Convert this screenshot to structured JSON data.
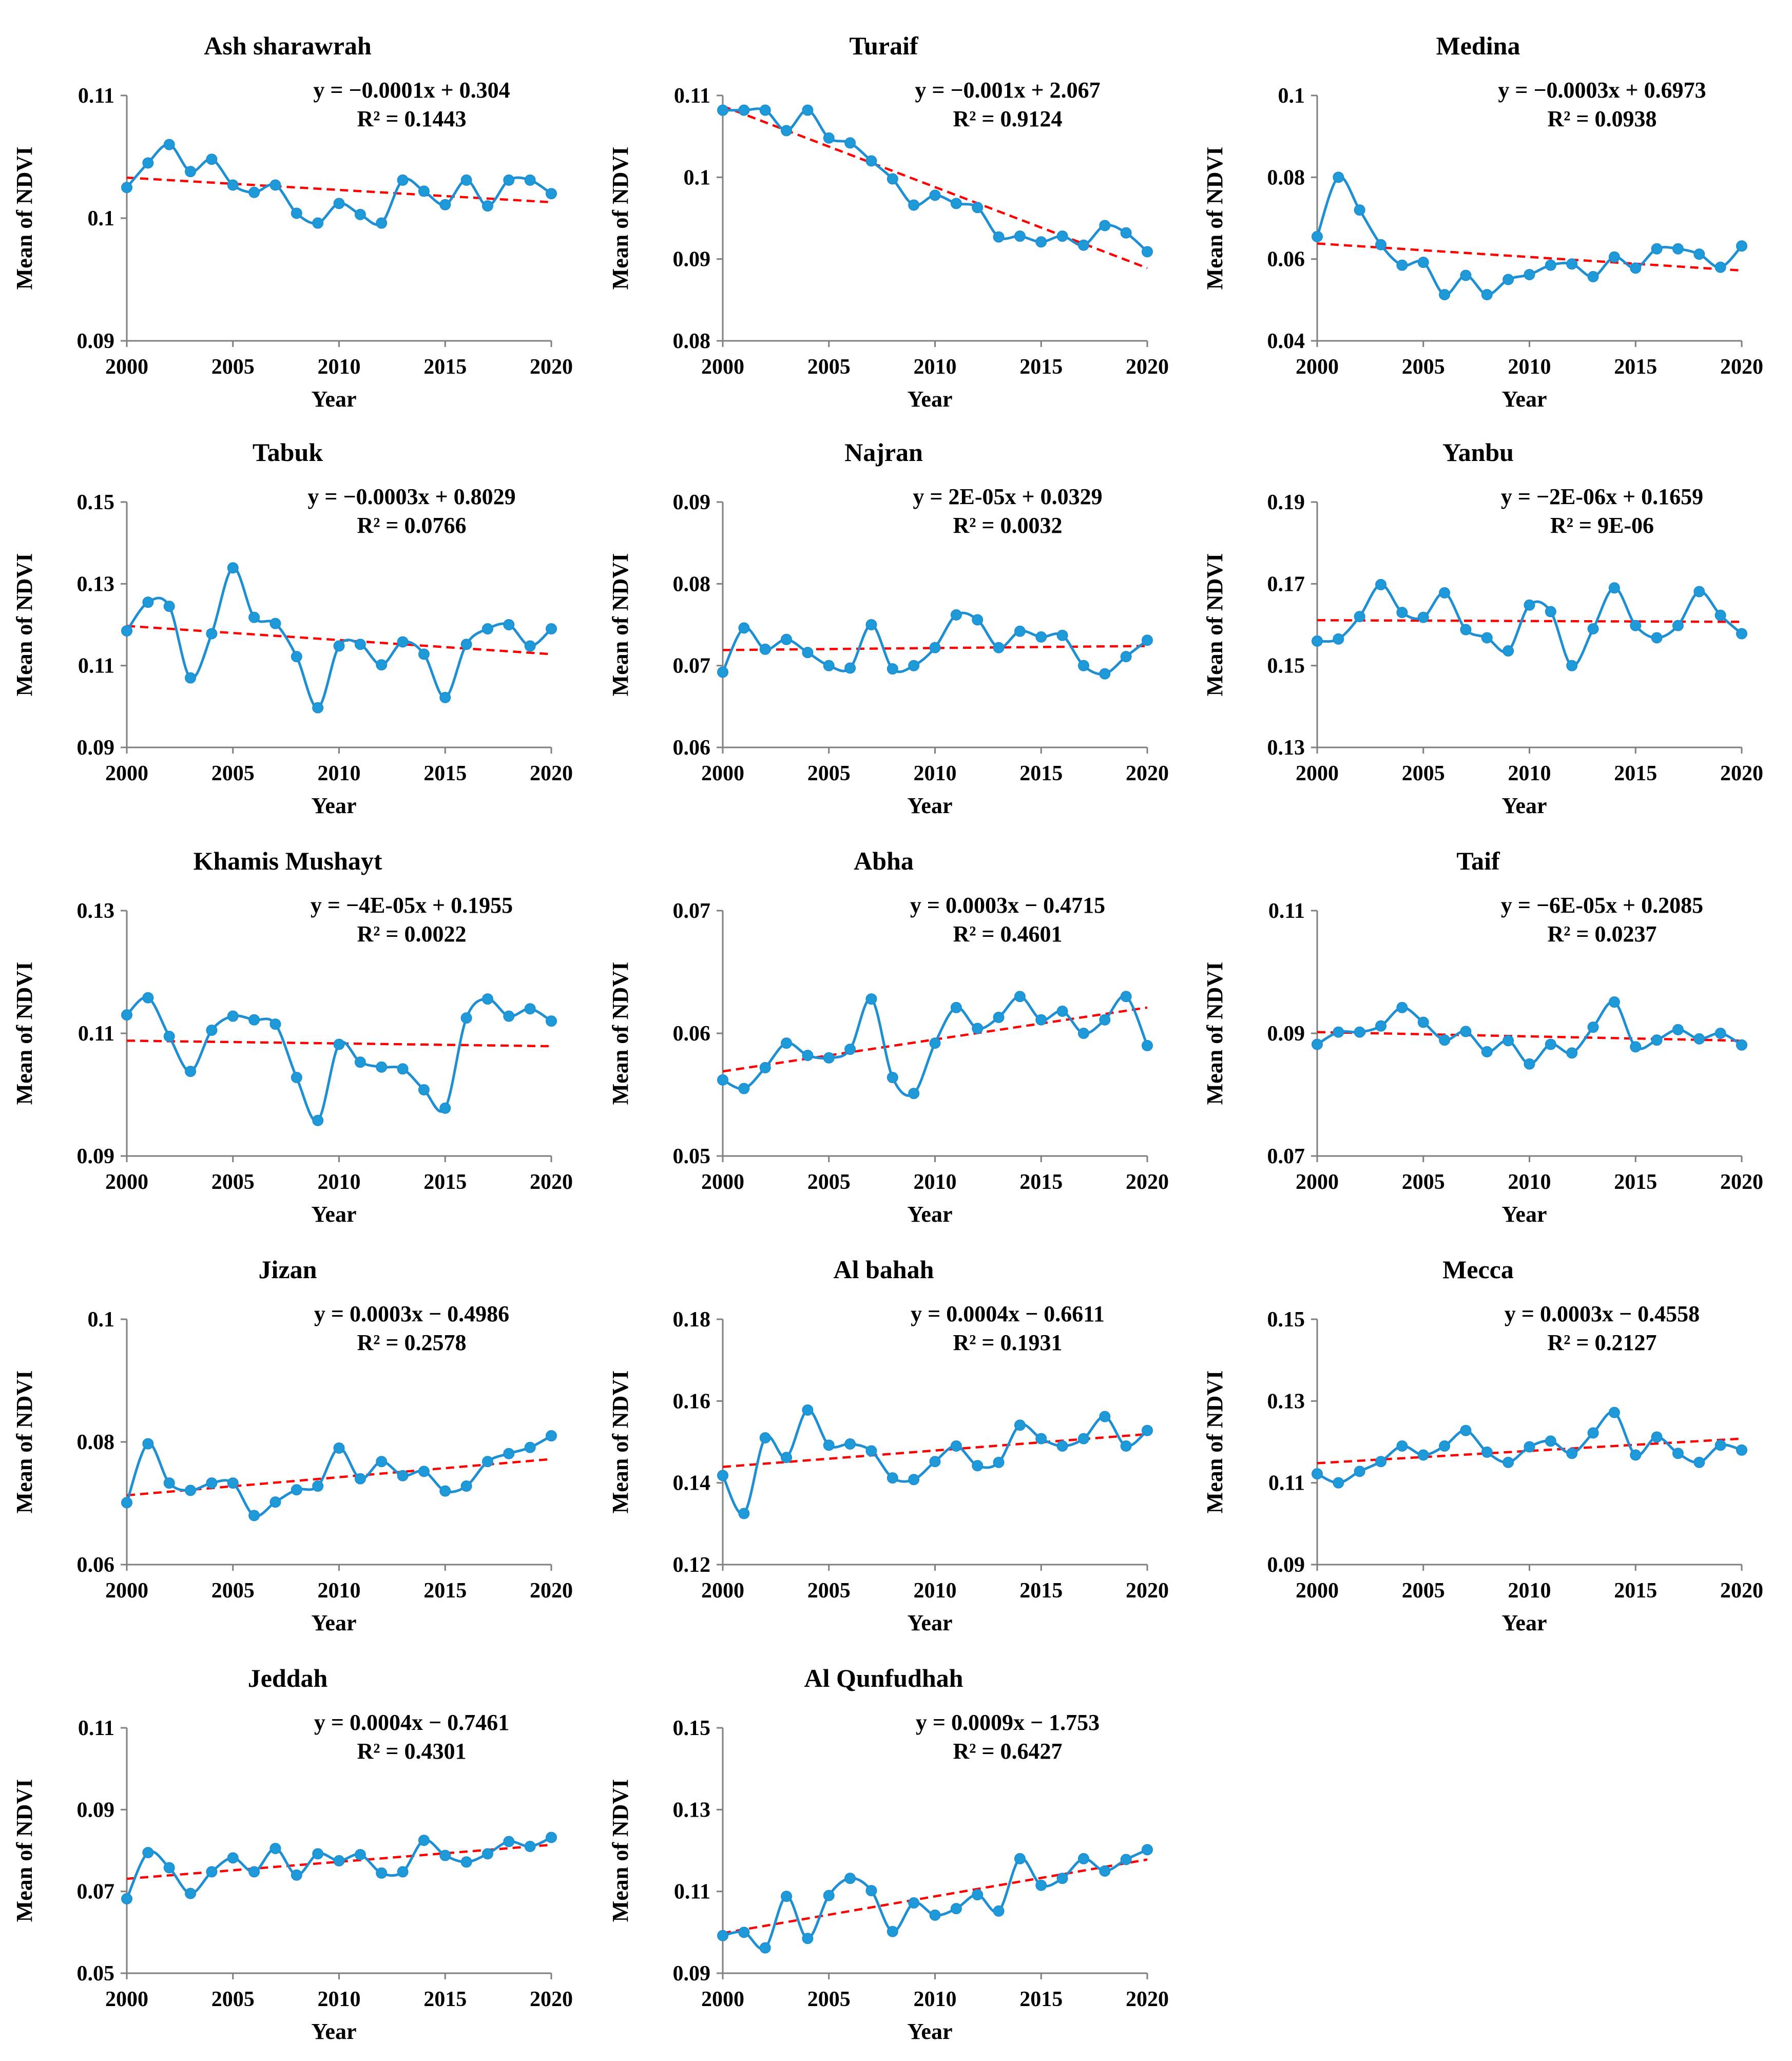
{
  "figure": {
    "series_color": "#1f8fd4",
    "marker_fill": "#1f9ad9",
    "trend_color": "#ff0000",
    "axis_color": "#7f7f7f"
  },
  "chart_data": [
    {
      "type": "line",
      "title": "Ash sharawrah",
      "xlabel": "Year",
      "ylabel": "Mean of NDVI",
      "x": [
        2000,
        2001,
        2002,
        2003,
        2004,
        2005,
        2006,
        2007,
        2008,
        2009,
        2010,
        2011,
        2012,
        2013,
        2014,
        2015,
        2016,
        2017,
        2018,
        2019,
        2020
      ],
      "values": [
        0.1025,
        0.1045,
        0.106,
        0.1038,
        0.1048,
        0.1027,
        0.1021,
        0.1027,
        0.1004,
        0.0996,
        0.1012,
        0.1003,
        0.0996,
        0.1031,
        0.1022,
        0.1011,
        0.1031,
        0.101,
        0.1031,
        0.1031,
        0.102
      ],
      "trend": {
        "slope": -0.0001,
        "intercept": 0.304,
        "r2": 0.1443,
        "start": 0.1033,
        "end": 0.1013
      },
      "equation": "y = −0.0001x + 0.304",
      "r2_label": "R² = 0.1443",
      "xlim": [
        2000,
        2020
      ],
      "ylim": [
        0.09,
        0.11
      ],
      "xticks": [
        2000,
        2005,
        2010,
        2015,
        2020
      ],
      "yticks": [
        0.09,
        0.1,
        0.11
      ],
      "ytick_labels": [
        "0.09",
        "0.1",
        "0.11"
      ]
    },
    {
      "type": "line",
      "title": "Turaif",
      "xlabel": "Year",
      "ylabel": "Mean of NDVI",
      "x": [
        2000,
        2001,
        2002,
        2003,
        2004,
        2005,
        2006,
        2007,
        2008,
        2009,
        2010,
        2011,
        2012,
        2013,
        2014,
        2015,
        2016,
        2017,
        2018,
        2019,
        2020
      ],
      "values": [
        0.1082,
        0.1082,
        0.1082,
        0.1057,
        0.1082,
        0.1048,
        0.1042,
        0.102,
        0.0998,
        0.0966,
        0.0978,
        0.0968,
        0.0963,
        0.0927,
        0.0928,
        0.0921,
        0.0928,
        0.0917,
        0.0941,
        0.0932,
        0.0909
      ],
      "trend": {
        "slope": -0.001,
        "intercept": 2.067,
        "r2": 0.9124,
        "start": 0.1087,
        "end": 0.0889
      },
      "equation": "y = −0.001x + 2.067",
      "r2_label": "R² = 0.9124",
      "xlim": [
        2000,
        2020
      ],
      "ylim": [
        0.08,
        0.11
      ],
      "xticks": [
        2000,
        2005,
        2010,
        2015,
        2020
      ],
      "yticks": [
        0.08,
        0.09,
        0.1,
        0.11
      ],
      "ytick_labels": [
        "0.08",
        "0.09",
        "0.1",
        "0.11"
      ]
    },
    {
      "type": "line",
      "title": "Medina",
      "xlabel": "Year",
      "ylabel": "Mean of NDVI",
      "x": [
        2000,
        2001,
        2002,
        2003,
        2004,
        2005,
        2006,
        2007,
        2008,
        2009,
        2010,
        2011,
        2012,
        2013,
        2014,
        2015,
        2016,
        2017,
        2018,
        2019,
        2020
      ],
      "values": [
        0.0655,
        0.08,
        0.072,
        0.0635,
        0.0585,
        0.0592,
        0.0513,
        0.056,
        0.0513,
        0.055,
        0.0562,
        0.0585,
        0.0588,
        0.0557,
        0.0605,
        0.0578,
        0.0625,
        0.0625,
        0.0612,
        0.058,
        0.0632
      ],
      "trend": {
        "slope": -0.0003,
        "intercept": 0.6973,
        "r2": 0.0938,
        "start": 0.0638,
        "end": 0.0572
      },
      "equation": "y = −0.0003x + 0.6973",
      "r2_label": "R² = 0.0938",
      "xlim": [
        2000,
        2020
      ],
      "ylim": [
        0.04,
        0.1
      ],
      "xticks": [
        2000,
        2005,
        2010,
        2015,
        2020
      ],
      "yticks": [
        0.04,
        0.06,
        0.08,
        0.1
      ],
      "ytick_labels": [
        "0.04",
        "0.06",
        "0.08",
        "0.1"
      ]
    },
    {
      "type": "line",
      "title": "Tabuk",
      "xlabel": "Year",
      "ylabel": "Mean of NDVI",
      "x": [
        2000,
        2001,
        2002,
        2003,
        2004,
        2005,
        2006,
        2007,
        2008,
        2009,
        2010,
        2011,
        2012,
        2013,
        2014,
        2015,
        2016,
        2017,
        2018,
        2019,
        2020
      ],
      "values": [
        0.1185,
        0.1255,
        0.1245,
        0.107,
        0.1178,
        0.1339,
        0.1218,
        0.1203,
        0.1122,
        0.0997,
        0.1148,
        0.1152,
        0.1102,
        0.1158,
        0.1128,
        0.1022,
        0.1152,
        0.119,
        0.12,
        0.1148,
        0.119
      ],
      "trend": {
        "slope": -0.0003,
        "intercept": 0.8029,
        "r2": 0.0766,
        "start": 0.1197,
        "end": 0.1128
      },
      "equation": "y = −0.0003x + 0.8029",
      "r2_label": "R² = 0.0766",
      "xlim": [
        2000,
        2020
      ],
      "ylim": [
        0.09,
        0.15
      ],
      "xticks": [
        2000,
        2005,
        2010,
        2015,
        2020
      ],
      "yticks": [
        0.09,
        0.11,
        0.13,
        0.15
      ],
      "ytick_labels": [
        "0.09",
        "0.11",
        "0.13",
        "0.15"
      ]
    },
    {
      "type": "line",
      "title": "Najran",
      "xlabel": "Year",
      "ylabel": "Mean of NDVI",
      "x": [
        2000,
        2001,
        2002,
        2003,
        2004,
        2005,
        2006,
        2007,
        2008,
        2009,
        2010,
        2011,
        2012,
        2013,
        2014,
        2015,
        2016,
        2017,
        2018,
        2019,
        2020
      ],
      "values": [
        0.0692,
        0.0746,
        0.072,
        0.0732,
        0.0716,
        0.07,
        0.0697,
        0.075,
        0.0696,
        0.07,
        0.0722,
        0.0762,
        0.0756,
        0.0722,
        0.0742,
        0.0735,
        0.0737,
        0.07,
        0.069,
        0.0711,
        0.0731
      ],
      "trend": {
        "slope": 2e-05,
        "intercept": 0.0329,
        "r2": 0.0032,
        "start": 0.0719,
        "end": 0.0724
      },
      "equation": "y = 2E-05x + 0.0329",
      "r2_label": "R² = 0.0032",
      "xlim": [
        2000,
        2020
      ],
      "ylim": [
        0.06,
        0.09
      ],
      "xticks": [
        2000,
        2005,
        2010,
        2015,
        2020
      ],
      "yticks": [
        0.06,
        0.07,
        0.08,
        0.09
      ],
      "ytick_labels": [
        "0.06",
        "0.07",
        "0.08",
        "0.09"
      ]
    },
    {
      "type": "line",
      "title": "Yanbu",
      "xlabel": "Year",
      "ylabel": "Mean of NDVI",
      "x": [
        2000,
        2001,
        2002,
        2003,
        2004,
        2005,
        2006,
        2007,
        2008,
        2009,
        2010,
        2011,
        2012,
        2013,
        2014,
        2015,
        2016,
        2017,
        2018,
        2019,
        2020
      ],
      "values": [
        0.156,
        0.1565,
        0.162,
        0.1698,
        0.163,
        0.1618,
        0.1678,
        0.1588,
        0.1568,
        0.1536,
        0.1648,
        0.1632,
        0.15,
        0.159,
        0.169,
        0.1598,
        0.1568,
        0.1598,
        0.1681,
        0.1623,
        0.1578
      ],
      "trend": {
        "slope": -2e-06,
        "intercept": 0.1659,
        "r2": 9e-06,
        "start": 0.1611,
        "end": 0.1607
      },
      "equation": "y = −2E-06x + 0.1659",
      "r2_label": "R² = 9E-06",
      "xlim": [
        2000,
        2020
      ],
      "ylim": [
        0.13,
        0.19
      ],
      "xticks": [
        2000,
        2005,
        2010,
        2015,
        2020
      ],
      "yticks": [
        0.13,
        0.15,
        0.17,
        0.19
      ],
      "ytick_labels": [
        "0.13",
        "0.15",
        "0.17",
        "0.19"
      ]
    },
    {
      "type": "line",
      "title": "Khamis Mushayt",
      "xlabel": "Year",
      "ylabel": "Mean of NDVI",
      "x": [
        2000,
        2001,
        2002,
        2003,
        2004,
        2005,
        2006,
        2007,
        2008,
        2009,
        2010,
        2011,
        2012,
        2013,
        2014,
        2015,
        2016,
        2017,
        2018,
        2019,
        2020
      ],
      "values": [
        0.113,
        0.1158,
        0.1095,
        0.1038,
        0.1105,
        0.1128,
        0.1122,
        0.1115,
        0.1028,
        0.0958,
        0.1082,
        0.1053,
        0.1045,
        0.1042,
        0.1008,
        0.0978,
        0.1125,
        0.1156,
        0.1128,
        0.114,
        0.112
      ],
      "trend": {
        "slope": -4e-05,
        "intercept": 0.1955,
        "r2": 0.0022,
        "start": 0.1088,
        "end": 0.1079
      },
      "equation": "y = −4E-05x + 0.1955",
      "r2_label": "R² = 0.0022",
      "xlim": [
        2000,
        2020
      ],
      "ylim": [
        0.09,
        0.13
      ],
      "xticks": [
        2000,
        2005,
        2010,
        2015,
        2020
      ],
      "yticks": [
        0.09,
        0.11,
        0.13
      ],
      "ytick_labels": [
        "0.09",
        "0.11",
        "0.13"
      ]
    },
    {
      "type": "line",
      "title": "Abha",
      "xlabel": "Year",
      "ylabel": "Mean of NDVI",
      "x": [
        2000,
        2001,
        2002,
        2003,
        2004,
        2005,
        2006,
        2007,
        2008,
        2009,
        2010,
        2011,
        2012,
        2013,
        2014,
        2015,
        2016,
        2017,
        2018,
        2019,
        2020
      ],
      "values": [
        0.0562,
        0.0555,
        0.0572,
        0.0592,
        0.0582,
        0.058,
        0.0587,
        0.0628,
        0.0564,
        0.0551,
        0.0592,
        0.0621,
        0.0604,
        0.0613,
        0.063,
        0.0611,
        0.0618,
        0.06,
        0.0611,
        0.063,
        0.059
      ],
      "trend": {
        "slope": 0.0003,
        "intercept": -0.4715,
        "r2": 0.4601,
        "start": 0.0569,
        "end": 0.0621
      },
      "equation": "y = 0.0003x − 0.4715",
      "r2_label": "R² = 0.4601",
      "xlim": [
        2000,
        2020
      ],
      "ylim": [
        0.05,
        0.07
      ],
      "xticks": [
        2000,
        2005,
        2010,
        2015,
        2020
      ],
      "yticks": [
        0.05,
        0.06,
        0.07
      ],
      "ytick_labels": [
        "0.05",
        "0.06",
        "0.07"
      ]
    },
    {
      "type": "line",
      "title": "Taif",
      "xlabel": "Year",
      "ylabel": "Mean of NDVI",
      "x": [
        2000,
        2001,
        2002,
        2003,
        2004,
        2005,
        2006,
        2007,
        2008,
        2009,
        2010,
        2011,
        2012,
        2013,
        2014,
        2015,
        2016,
        2017,
        2018,
        2019,
        2020
      ],
      "values": [
        0.0882,
        0.0902,
        0.0902,
        0.0912,
        0.0942,
        0.0918,
        0.0889,
        0.0903,
        0.087,
        0.0888,
        0.085,
        0.0882,
        0.0868,
        0.091,
        0.0951,
        0.0878,
        0.0889,
        0.0906,
        0.0891,
        0.09,
        0.0881
      ],
      "trend": {
        "slope": -6e-05,
        "intercept": 0.2085,
        "r2": 0.0237,
        "start": 0.0902,
        "end": 0.0888
      },
      "equation": "y = −6E-05x + 0.2085",
      "r2_label": "R² = 0.0237",
      "xlim": [
        2000,
        2020
      ],
      "ylim": [
        0.07,
        0.11
      ],
      "xticks": [
        2000,
        2005,
        2010,
        2015,
        2020
      ],
      "yticks": [
        0.07,
        0.09,
        0.11
      ],
      "ytick_labels": [
        "0.07",
        "0.09",
        "0.11"
      ]
    },
    {
      "type": "line",
      "title": "Jizan",
      "xlabel": "Year",
      "ylabel": "Mean of NDVI",
      "x": [
        2000,
        2001,
        2002,
        2003,
        2004,
        2005,
        2006,
        2007,
        2008,
        2009,
        2010,
        2011,
        2012,
        2013,
        2014,
        2015,
        2016,
        2017,
        2018,
        2019,
        2020
      ],
      "values": [
        0.0701,
        0.0797,
        0.0733,
        0.0721,
        0.0733,
        0.0733,
        0.068,
        0.0702,
        0.0722,
        0.0728,
        0.079,
        0.074,
        0.0768,
        0.0745,
        0.0752,
        0.072,
        0.0728,
        0.0768,
        0.0781,
        0.0791,
        0.081
      ],
      "trend": {
        "slope": 0.0003,
        "intercept": -0.4986,
        "r2": 0.2578,
        "start": 0.0713,
        "end": 0.0772
      },
      "equation": "y = 0.0003x − 0.4986",
      "r2_label": "R² = 0.2578",
      "xlim": [
        2000,
        2020
      ],
      "ylim": [
        0.06,
        0.1
      ],
      "xticks": [
        2000,
        2005,
        2010,
        2015,
        2020
      ],
      "yticks": [
        0.06,
        0.08,
        0.1
      ],
      "ytick_labels": [
        "0.06",
        "0.08",
        "0.1"
      ]
    },
    {
      "type": "line",
      "title": "Al bahah",
      "xlabel": "Year",
      "ylabel": "Mean of NDVI",
      "x": [
        2000,
        2001,
        2002,
        2003,
        2004,
        2005,
        2006,
        2007,
        2008,
        2009,
        2010,
        2011,
        2012,
        2013,
        2014,
        2015,
        2016,
        2017,
        2018,
        2019,
        2020
      ],
      "values": [
        0.1418,
        0.1325,
        0.151,
        0.1462,
        0.1578,
        0.1492,
        0.1495,
        0.1478,
        0.1412,
        0.1408,
        0.1452,
        0.149,
        0.1442,
        0.145,
        0.1541,
        0.1508,
        0.149,
        0.1508,
        0.1562,
        0.149,
        0.1528
      ],
      "trend": {
        "slope": 0.0004,
        "intercept": -0.6611,
        "r2": 0.1931,
        "start": 0.1439,
        "end": 0.1519
      },
      "equation": "y = 0.0004x − 0.6611",
      "r2_label": "R² = 0.1931",
      "xlim": [
        2000,
        2020
      ],
      "ylim": [
        0.12,
        0.18
      ],
      "xticks": [
        2000,
        2005,
        2010,
        2015,
        2020
      ],
      "yticks": [
        0.12,
        0.14,
        0.16,
        0.18
      ],
      "ytick_labels": [
        "0.12",
        "0.14",
        "0.16",
        "0.18"
      ]
    },
    {
      "type": "line",
      "title": "Mecca",
      "xlabel": "Year",
      "ylabel": "Mean of NDVI",
      "x": [
        2000,
        2001,
        2002,
        2003,
        2004,
        2005,
        2006,
        2007,
        2008,
        2009,
        2010,
        2011,
        2012,
        2013,
        2014,
        2015,
        2016,
        2017,
        2018,
        2019,
        2020
      ],
      "values": [
        0.1122,
        0.11,
        0.1128,
        0.1152,
        0.119,
        0.1168,
        0.119,
        0.1228,
        0.1175,
        0.115,
        0.1188,
        0.1202,
        0.1172,
        0.1222,
        0.1272,
        0.1168,
        0.1212,
        0.1172,
        0.115,
        0.1192,
        0.118
      ],
      "trend": {
        "slope": 0.0003,
        "intercept": -0.4558,
        "r2": 0.2127,
        "start": 0.1148,
        "end": 0.1208
      },
      "equation": "y = 0.0003x − 0.4558",
      "r2_label": "R² = 0.2127",
      "xlim": [
        2000,
        2020
      ],
      "ylim": [
        0.09,
        0.15
      ],
      "xticks": [
        2000,
        2005,
        2010,
        2015,
        2020
      ],
      "yticks": [
        0.09,
        0.11,
        0.13,
        0.15
      ],
      "ytick_labels": [
        "0.09",
        "0.11",
        "0.13",
        "0.15"
      ]
    },
    {
      "type": "line",
      "title": "Jeddah",
      "xlabel": "Year",
      "ylabel": "Mean of NDVI",
      "x": [
        2000,
        2001,
        2002,
        2003,
        2004,
        2005,
        2006,
        2007,
        2008,
        2009,
        2010,
        2011,
        2012,
        2013,
        2014,
        2015,
        2016,
        2017,
        2018,
        2019,
        2020
      ],
      "values": [
        0.0682,
        0.0795,
        0.0758,
        0.0695,
        0.0748,
        0.0782,
        0.0748,
        0.0805,
        0.074,
        0.0792,
        0.0775,
        0.079,
        0.0745,
        0.0748,
        0.0825,
        0.0788,
        0.0772,
        0.0792,
        0.0822,
        0.081,
        0.0832
      ],
      "trend": {
        "slope": 0.0004,
        "intercept": -0.7461,
        "r2": 0.4301,
        "start": 0.0731,
        "end": 0.0814
      },
      "equation": "y = 0.0004x − 0.7461",
      "r2_label": "R² = 0.4301",
      "xlim": [
        2000,
        2020
      ],
      "ylim": [
        0.05,
        0.11
      ],
      "xticks": [
        2000,
        2005,
        2010,
        2015,
        2020
      ],
      "yticks": [
        0.05,
        0.07,
        0.09,
        0.11
      ],
      "ytick_labels": [
        "0.05",
        "0.07",
        "0.09",
        "0.11"
      ]
    },
    {
      "type": "line",
      "title": "Al Qunfudhah",
      "xlabel": "Year",
      "ylabel": "Mean of NDVI",
      "x": [
        2000,
        2001,
        2002,
        2003,
        2004,
        2005,
        2006,
        2007,
        2008,
        2009,
        2010,
        2011,
        2012,
        2013,
        2014,
        2015,
        2016,
        2017,
        2018,
        2019,
        2020
      ],
      "values": [
        0.0992,
        0.1,
        0.0962,
        0.1088,
        0.0985,
        0.109,
        0.1132,
        0.1102,
        0.1002,
        0.1072,
        0.1042,
        0.1058,
        0.1092,
        0.1052,
        0.118,
        0.1115,
        0.1132,
        0.118,
        0.115,
        0.1178,
        0.1202
      ],
      "trend": {
        "slope": 0.0009,
        "intercept": -1.753,
        "r2": 0.6427,
        "start": 0.0998,
        "end": 0.1178
      },
      "equation": "y = 0.0009x − 1.753",
      "r2_label": "R² = 0.6427",
      "xlim": [
        2000,
        2020
      ],
      "ylim": [
        0.09,
        0.15
      ],
      "xticks": [
        2000,
        2005,
        2010,
        2015,
        2020
      ],
      "yticks": [
        0.09,
        0.11,
        0.13,
        0.15
      ],
      "ytick_labels": [
        "0.09",
        "0.11",
        "0.13",
        "0.15"
      ]
    }
  ]
}
